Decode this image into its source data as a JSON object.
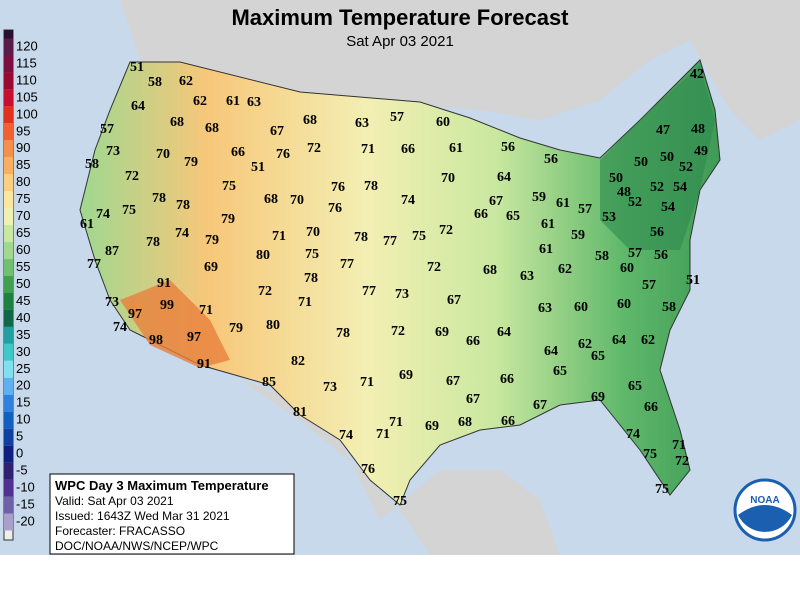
{
  "title": "Maximum Temperature Forecast",
  "subtitle": "Sat Apr 03 2021",
  "legend": {
    "labels": [
      120,
      115,
      110,
      105,
      100,
      95,
      90,
      85,
      80,
      75,
      70,
      65,
      60,
      55,
      50,
      45,
      40,
      35,
      30,
      25,
      20,
      15,
      10,
      5,
      0,
      -5,
      -10,
      -15,
      -20
    ],
    "colors": [
      "#5a1a4a",
      "#7a1040",
      "#9a0a30",
      "#c8102e",
      "#e0301e",
      "#f06030",
      "#f5904a",
      "#f8b060",
      "#fad080",
      "#fbe8a0",
      "#f0f0b0",
      "#c8e8a0",
      "#a0d890",
      "#70c070",
      "#40a050",
      "#208040",
      "#106848",
      "#20a0a0",
      "#40c8c8",
      "#80e0f0",
      "#60b0f0",
      "#3080e0",
      "#1060c0",
      "#1040a0",
      "#102080",
      "#302070",
      "#503090",
      "#7060a8",
      "#a8a0c8"
    ]
  },
  "temperatures": [
    51,
    58,
    62,
    64,
    62,
    61,
    63,
    68,
    63,
    57,
    60,
    42,
    57,
    68,
    68,
    67,
    47,
    48,
    73,
    70,
    79,
    66,
    76,
    72,
    71,
    66,
    61,
    56,
    56,
    50,
    50,
    52,
    49,
    58,
    72,
    51,
    70,
    64,
    50,
    52,
    54,
    75,
    76,
    78,
    74,
    48,
    52,
    78,
    78,
    68,
    70,
    59,
    61,
    57,
    53,
    54,
    74,
    75,
    61,
    79,
    76,
    67,
    66,
    65,
    74,
    79,
    71,
    70,
    78,
    77,
    75,
    72,
    61,
    59,
    56,
    78,
    87,
    80,
    75,
    61,
    62,
    58,
    57,
    56,
    77,
    69,
    77,
    72,
    68,
    63,
    60,
    78,
    91,
    72,
    77,
    73,
    67,
    57,
    51,
    73,
    99,
    97,
    71,
    71,
    63,
    60,
    60,
    58,
    74,
    97,
    79,
    80,
    78,
    72,
    69,
    64,
    98,
    66,
    64,
    62,
    65,
    64,
    62,
    91,
    82,
    69,
    66,
    65,
    85,
    73,
    71,
    67,
    65,
    67,
    69,
    66,
    81,
    71,
    69,
    68,
    66,
    67,
    74,
    71,
    74,
    71,
    75,
    72,
    76,
    75,
    75
  ],
  "info": [
    "WPC Day 3 Maximum Temperature",
    "Valid: Sat Apr 03 2021",
    "Issued: 1643Z Wed Mar 31 2021",
    "Forecaster: FRACASSO",
    "DOC/NOAA/NWS/NCEP/WPC"
  ],
  "logo": "NOAA"
}
